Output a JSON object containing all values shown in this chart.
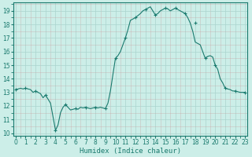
{
  "x": [
    0,
    0.25,
    0.5,
    0.75,
    1,
    1.25,
    1.5,
    1.75,
    2,
    2.25,
    2.5,
    2.75,
    3,
    3.25,
    3.5,
    3.75,
    4,
    4.25,
    4.5,
    4.75,
    5,
    5.25,
    5.5,
    5.75,
    6,
    6.25,
    6.5,
    6.75,
    7,
    7.25,
    7.5,
    7.75,
    8,
    8.25,
    8.5,
    8.75,
    9,
    9.25,
    9.5,
    9.75,
    10,
    10.25,
    10.5,
    10.75,
    11,
    11.25,
    11.5,
    11.75,
    12,
    12.25,
    12.5,
    12.75,
    13,
    13.25,
    13.5,
    13.75,
    14,
    14.25,
    14.5,
    14.75,
    15,
    15.25,
    15.5,
    15.75,
    16,
    16.25,
    16.5,
    16.75,
    17,
    17.25,
    17.5,
    17.75,
    18,
    18.25,
    18.5,
    18.75,
    19,
    19.25,
    19.5,
    19.75,
    20,
    20.25,
    20.5,
    20.75,
    21,
    21.25,
    21.5,
    21.75,
    22,
    22.25,
    22.5,
    22.75,
    23
  ],
  "y": [
    13.2,
    13.25,
    13.3,
    13.25,
    13.3,
    13.25,
    13.2,
    13.0,
    13.1,
    13.0,
    12.9,
    12.6,
    12.8,
    12.5,
    12.2,
    11.2,
    10.2,
    10.6,
    11.5,
    11.9,
    12.1,
    11.9,
    11.7,
    11.75,
    11.8,
    11.75,
    11.9,
    11.85,
    11.9,
    11.85,
    11.8,
    11.85,
    11.9,
    11.85,
    11.9,
    11.85,
    11.8,
    12.2,
    13.1,
    14.3,
    15.5,
    15.7,
    16.0,
    16.5,
    17.0,
    17.6,
    18.3,
    18.4,
    18.5,
    18.65,
    18.8,
    19.0,
    19.1,
    19.2,
    19.3,
    19.0,
    18.7,
    18.8,
    19.0,
    19.1,
    19.2,
    19.15,
    19.0,
    19.1,
    19.2,
    19.1,
    19.0,
    18.9,
    18.8,
    18.5,
    18.1,
    17.5,
    16.7,
    16.6,
    16.5,
    16.0,
    15.5,
    15.65,
    15.7,
    15.6,
    15.0,
    14.7,
    14.0,
    13.7,
    13.3,
    13.25,
    13.2,
    13.1,
    13.1,
    13.05,
    13.0,
    13.0,
    13.0
  ],
  "marker_x": [
    0,
    1,
    2,
    3,
    4,
    5,
    6,
    7,
    8,
    9,
    10,
    11,
    12,
    13,
    14,
    15,
    16,
    17,
    18,
    19,
    20,
    21,
    22,
    23
  ],
  "marker_y": [
    13.2,
    13.3,
    13.1,
    12.8,
    10.2,
    12.1,
    11.8,
    11.9,
    11.9,
    11.8,
    15.5,
    17.0,
    18.5,
    19.1,
    18.7,
    19.2,
    19.2,
    18.8,
    18.1,
    15.5,
    15.0,
    13.3,
    13.1,
    13.0
  ],
  "line_color": "#1a7a6e",
  "marker_color": "#1a7a6e",
  "bg_color": "#cceee8",
  "grid_major_color": "#aad4ce",
  "grid_minor_color": "#bde4de",
  "tick_color": "#1a7a6e",
  "xlabel": "Humidex (Indice chaleur)",
  "ylim": [
    9.8,
    19.6
  ],
  "xlim": [
    -0.2,
    23.2
  ],
  "yticks": [
    10,
    11,
    12,
    13,
    14,
    15,
    16,
    17,
    18,
    19
  ],
  "xticks": [
    0,
    1,
    2,
    3,
    4,
    5,
    6,
    7,
    8,
    9,
    10,
    11,
    12,
    13,
    14,
    15,
    16,
    17,
    18,
    19,
    20,
    21,
    22,
    23
  ]
}
